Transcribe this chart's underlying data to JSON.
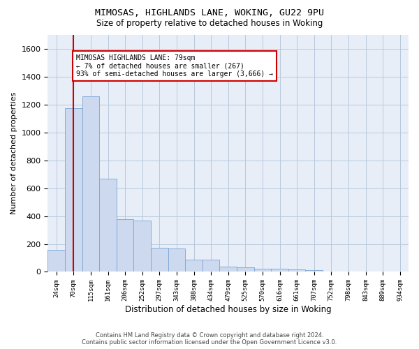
{
  "title_line1": "MIMOSAS, HIGHLANDS LANE, WOKING, GU22 9PU",
  "title_line2": "Size of property relative to detached houses in Woking",
  "xlabel": "Distribution of detached houses by size in Woking",
  "ylabel": "Number of detached properties",
  "bar_color": "#ccd9ee",
  "bar_edge_color": "#7ba4d4",
  "grid_color": "#b8c8dc",
  "bg_color": "#e8eef8",
  "marker_line_color": "#cc0000",
  "annotation_box_color": "#cc0000",
  "categories": [
    "24sqm",
    "70sqm",
    "115sqm",
    "161sqm",
    "206sqm",
    "252sqm",
    "297sqm",
    "343sqm",
    "388sqm",
    "434sqm",
    "479sqm",
    "525sqm",
    "570sqm",
    "616sqm",
    "661sqm",
    "707sqm",
    "752sqm",
    "798sqm",
    "843sqm",
    "889sqm",
    "934sqm"
  ],
  "values": [
    160,
    1175,
    1260,
    670,
    380,
    370,
    175,
    170,
    90,
    85,
    35,
    30,
    20,
    22,
    18,
    10,
    0,
    0,
    0,
    0,
    0
  ],
  "ylim": [
    0,
    1700
  ],
  "yticks": [
    0,
    200,
    400,
    600,
    800,
    1000,
    1200,
    1400,
    1600
  ],
  "marker_bin_index": 1,
  "annotation_text_line1": "MIMOSAS HIGHLANDS LANE: 79sqm",
  "annotation_text_line2": "← 7% of detached houses are smaller (267)",
  "annotation_text_line3": "93% of semi-detached houses are larger (3,666) →",
  "footer_line1": "Contains HM Land Registry data © Crown copyright and database right 2024.",
  "footer_line2": "Contains public sector information licensed under the Open Government Licence v3.0."
}
